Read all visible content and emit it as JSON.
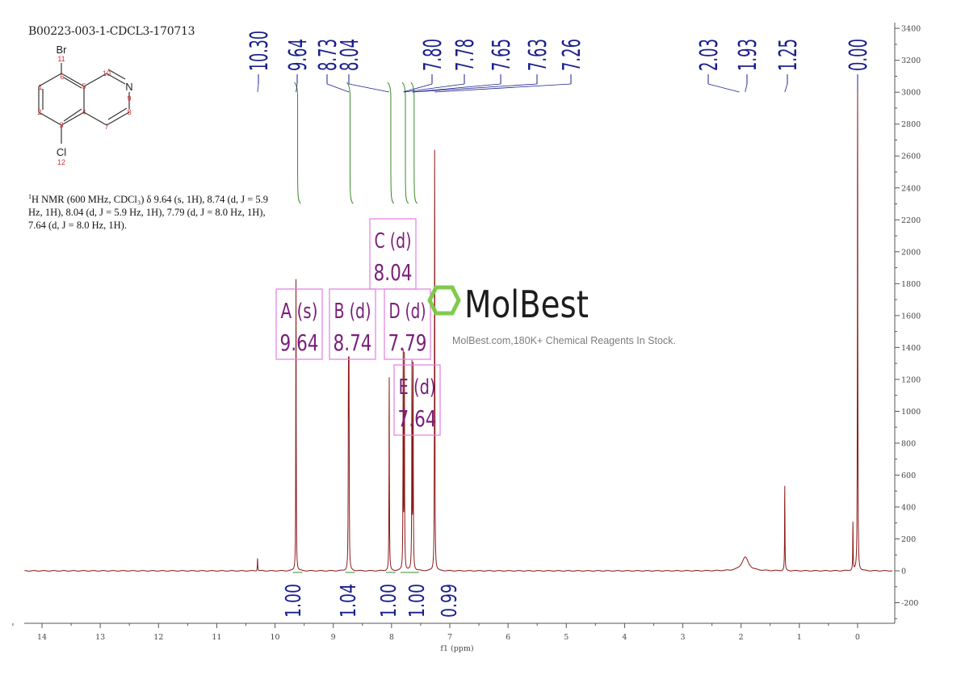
{
  "sample_id": "B00223-003-1-CDCL3-170713",
  "description": {
    "sup": "1",
    "text": "H NMR (600 MHz, CDCl₃) δ 9.64 (s, 1H), 8.74 (d, J = 5.9 Hz, 1H), 8.04 (d, J = 5.9 Hz, 1H), 7.79 (d, J = 8.0 Hz, 1H), 7.64 (d, J = 8.0 Hz, 1H)."
  },
  "structure": {
    "atoms": {
      "br": "Br",
      "cl": "Cl",
      "n": "N"
    },
    "numbers": [
      "1",
      "2",
      "3",
      "4",
      "5",
      "6",
      "7",
      "8",
      "9",
      "10",
      "11",
      "12"
    ]
  },
  "watermark": {
    "brand": "MolBest",
    "tagline": "MolBest.com,180K+ Chemical Reagents In Stock."
  },
  "colors": {
    "spectrum": "#8b1a1a",
    "peak_label": "#1a1f8c",
    "integral_curve": "#3a8a2a",
    "multiplet_box": "#e27de2",
    "multiplet_text": "#7a1f7a",
    "axis": "#555555"
  },
  "chart_data": {
    "type": "line",
    "title": "",
    "xlabel": "f1 (ppm)",
    "ylabel": "",
    "xlim": [
      14.3,
      -0.6
    ],
    "ylim": [
      -300,
      3450
    ],
    "x_ticks": [
      "14",
      "13",
      "12",
      "11",
      "10",
      "9",
      "8",
      "7",
      "6",
      "5",
      "4",
      "3",
      "2",
      "1",
      "0"
    ],
    "y_ticks": [
      "-200",
      "0",
      "200",
      "400",
      "600",
      "800",
      "1000",
      "1200",
      "1400",
      "1600",
      "1800",
      "2000",
      "2200",
      "2400",
      "2600",
      "2800",
      "3000",
      "3200",
      "3400"
    ],
    "peak_labels": [
      "10.30",
      "9.64",
      "8.73",
      "8.04",
      "7.80",
      "7.78",
      "7.65",
      "7.63",
      "7.26",
      "2.03",
      "1.93",
      "1.25",
      "0.00"
    ],
    "peaks": [
      {
        "ppm": 10.3,
        "intensity": 80
      },
      {
        "ppm": 9.64,
        "intensity": 1830
      },
      {
        "ppm": 8.74,
        "intensity": 1180
      },
      {
        "ppm": 8.73,
        "intensity": 1180
      },
      {
        "ppm": 8.04,
        "intensity": 1210
      },
      {
        "ppm": 7.8,
        "intensity": 1340
      },
      {
        "ppm": 7.78,
        "intensity": 1320
      },
      {
        "ppm": 7.65,
        "intensity": 1270
      },
      {
        "ppm": 7.63,
        "intensity": 1260
      },
      {
        "ppm": 7.26,
        "intensity": 2640
      },
      {
        "ppm": 1.93,
        "intensity": 85
      },
      {
        "ppm": 1.25,
        "intensity": 530
      },
      {
        "ppm": 0.08,
        "intensity": 300
      },
      {
        "ppm": 0.0,
        "intensity": 3060
      }
    ],
    "integrals": [
      {
        "ppm": 9.64,
        "value": "1.00"
      },
      {
        "ppm": 8.74,
        "value": "1.04"
      },
      {
        "ppm": 8.04,
        "value": "1.00"
      },
      {
        "ppm": 7.79,
        "value": "1.00"
      },
      {
        "ppm": 7.64,
        "value": "0.99"
      }
    ],
    "multiplets": [
      {
        "label": "A (s)",
        "shift": "9.64"
      },
      {
        "label": "B (d)",
        "shift": "8.74"
      },
      {
        "label": "C (d)",
        "shift": "8.04"
      },
      {
        "label": "D (d)",
        "shift": "7.79"
      },
      {
        "label": "E (d)",
        "shift": "7.64"
      }
    ],
    "grid": false
  }
}
